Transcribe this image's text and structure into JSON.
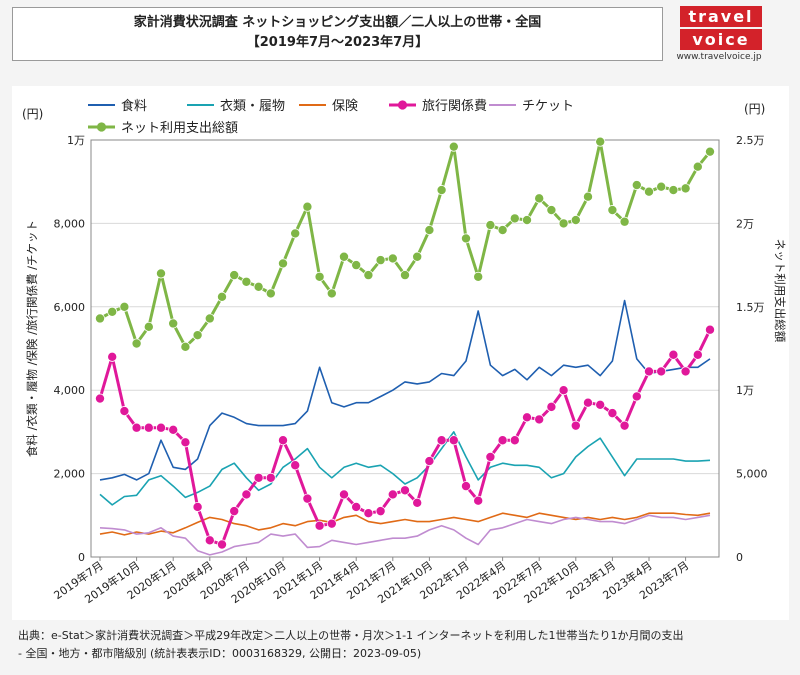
{
  "header": {
    "title_line1": "家計消費状況調査 ネットショッピング支出額／二人以上の世帯・全国",
    "title_line2": "【2019年7月～2023年7月】"
  },
  "logo": {
    "line1": "travel",
    "line2": "voice",
    "url": "www.travelvoice.jp"
  },
  "source": {
    "line1": "出典：e-Stat＞家計消費状況調査＞平成29年改定＞二人以上の世帯・月次＞1-1 インターネットを利用した1世帯当たり1か月間の支出",
    "line2": "- 全国・地方・都市階級別 (統計表表示ID：0003168329, 公開日：2023-09-05)"
  },
  "chart_data": {
    "type": "line",
    "left_axis": {
      "unit": "(円)",
      "label": "食料 /衣類・履物 /保険 /旅行関係費 /チケット",
      "ticks": [
        "0",
        "2,000",
        "4,000",
        "6,000",
        "8,000",
        "1万"
      ],
      "ylim": [
        0,
        10000
      ]
    },
    "right_axis": {
      "unit": "(円)",
      "label": "ネット利用支出総額",
      "ticks": [
        "0",
        "5,000",
        "1万",
        "1.5万",
        "2万",
        "2.5万"
      ],
      "ylim": [
        0,
        25000
      ]
    },
    "x_tick_labels": [
      "2019年7月",
      "2019年10月",
      "2020年1月",
      "2020年4月",
      "2020年7月",
      "2020年10月",
      "2021年1月",
      "2021年4月",
      "2021年7月",
      "2021年10月",
      "2022年1月",
      "2022年4月",
      "2022年7月",
      "2022年10月",
      "2023年1月",
      "2023年4月",
      "2023年7月"
    ],
    "colors": {
      "food": "#1f5fb0",
      "clothing": "#1aa3b2",
      "insurance": "#e06a16",
      "travel": "#e0189a",
      "ticket": "#c08cd0",
      "total": "#7fb646"
    },
    "series": [
      {
        "name": "食料",
        "color": "#1f5fb0",
        "axis": "left",
        "markers": false,
        "values": [
          1850,
          1900,
          1980,
          1850,
          2000,
          2800,
          2150,
          2100,
          2350,
          3150,
          3450,
          3350,
          3200,
          3150,
          3150,
          3150,
          3200,
          3500,
          4550,
          3700,
          3600,
          3700,
          3700,
          3850,
          4000,
          4200,
          4150,
          4200,
          4400,
          4350,
          4700,
          5900,
          4600,
          4350,
          4500,
          4250,
          4550,
          4350,
          4600,
          4550,
          4600,
          4350,
          4700,
          6150,
          4750,
          4400,
          4450,
          4500,
          4550,
          4550,
          4750
        ]
      },
      {
        "name": "衣類・履物",
        "color": "#1aa3b2",
        "axis": "left",
        "markers": false,
        "values": [
          1500,
          1250,
          1450,
          1480,
          1850,
          1950,
          1700,
          1430,
          1550,
          1700,
          2100,
          2250,
          1900,
          1600,
          1750,
          2150,
          2350,
          2600,
          2150,
          1900,
          2150,
          2250,
          2150,
          2200,
          2000,
          1750,
          1900,
          2200,
          2600,
          3000,
          2400,
          1850,
          2150,
          2250,
          2200,
          2200,
          2150,
          1900,
          2000,
          2400,
          2650,
          2850,
          2400,
          1950,
          2350,
          2350,
          2350,
          2350,
          2300,
          2300,
          2320
        ]
      },
      {
        "name": "保険",
        "color": "#e06a16",
        "axis": "left",
        "markers": false,
        "values": [
          550,
          600,
          530,
          600,
          550,
          620,
          580,
          700,
          830,
          950,
          900,
          800,
          750,
          650,
          700,
          800,
          750,
          850,
          880,
          830,
          950,
          1000,
          850,
          800,
          850,
          900,
          850,
          850,
          900,
          950,
          900,
          850,
          950,
          1050,
          1000,
          950,
          1050,
          1000,
          950,
          900,
          950,
          900,
          950,
          900,
          950,
          1050,
          1050,
          1050,
          1020,
          1000,
          1050
        ]
      },
      {
        "name": "旅行関係費",
        "color": "#e0189a",
        "axis": "left",
        "markers": true,
        "values": [
          3800,
          4800,
          3500,
          3100,
          3100,
          3100,
          3050,
          2750,
          1200,
          400,
          300,
          1100,
          1500,
          1900,
          1900,
          2800,
          2200,
          1400,
          750,
          800,
          1500,
          1200,
          1050,
          1100,
          1500,
          1600,
          1300,
          2300,
          2800,
          2800,
          1700,
          1350,
          2400,
          2800,
          2800,
          3350,
          3300,
          3600,
          4000,
          3150,
          3700,
          3650,
          3450,
          3150,
          3850,
          4450,
          4450,
          4850,
          4450,
          4850,
          5450
        ]
      },
      {
        "name": "チケット",
        "color": "#c08cd0",
        "axis": "left",
        "markers": false,
        "values": [
          700,
          680,
          650,
          550,
          580,
          700,
          500,
          450,
          150,
          50,
          120,
          250,
          300,
          350,
          550,
          500,
          550,
          230,
          250,
          400,
          350,
          300,
          350,
          400,
          450,
          450,
          500,
          650,
          750,
          650,
          450,
          300,
          650,
          700,
          800,
          900,
          850,
          800,
          900,
          950,
          900,
          850,
          850,
          800,
          900,
          1000,
          950,
          950,
          900,
          950,
          1000
        ]
      },
      {
        "name": "ネット利用支出総額",
        "color": "#7fb646",
        "axis": "right",
        "markers": true,
        "values": [
          14300,
          14700,
          15000,
          12800,
          13800,
          17000,
          14000,
          12600,
          13300,
          14300,
          15600,
          16900,
          16500,
          16200,
          15800,
          17600,
          19400,
          21000,
          16800,
          15800,
          18000,
          17500,
          16900,
          17800,
          17900,
          16900,
          18000,
          19600,
          22000,
          24600,
          19100,
          16800,
          19900,
          19600,
          20300,
          20200,
          21500,
          20800,
          20000,
          20200,
          21600,
          24900,
          20800,
          20100,
          22300,
          21900,
          22200,
          22000,
          22100,
          23400,
          24300
        ]
      }
    ]
  }
}
